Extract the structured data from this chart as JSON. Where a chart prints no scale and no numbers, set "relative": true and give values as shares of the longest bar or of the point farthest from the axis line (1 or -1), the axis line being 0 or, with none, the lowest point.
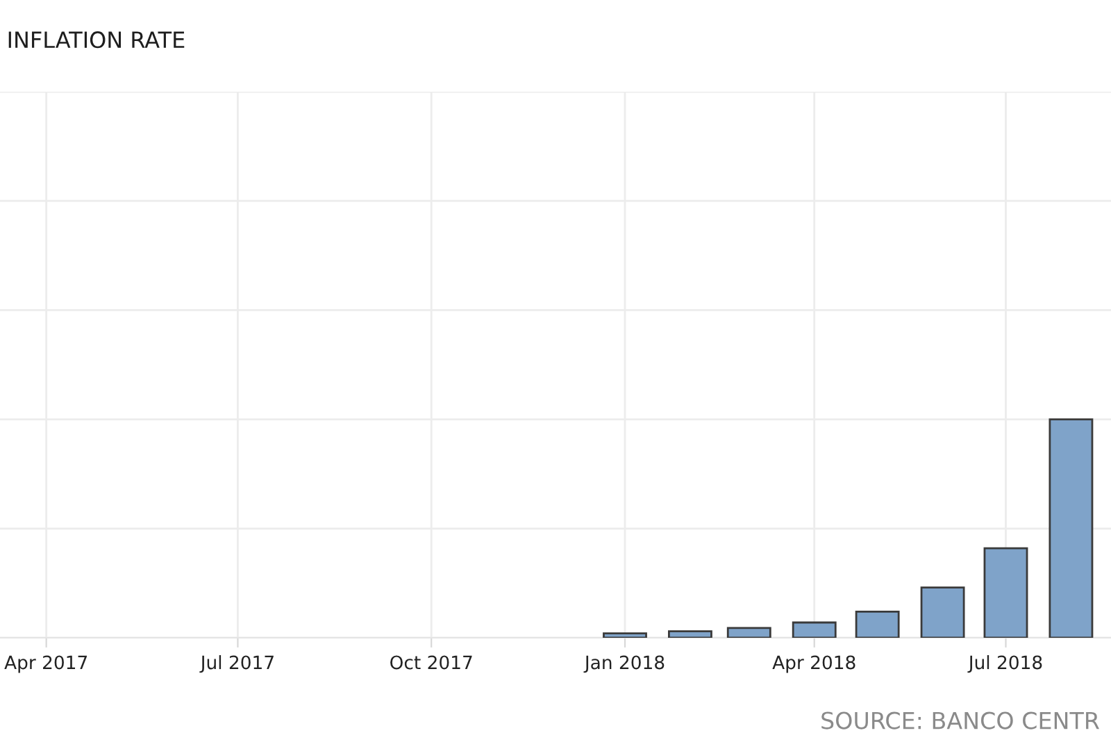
{
  "chart_data": {
    "type": "bar",
    "title": "INFLATION RATE",
    "x": [
      "2018-01",
      "2018-02",
      "2018-03",
      "2018-04",
      "2018-05",
      "2018-06",
      "2018-07",
      "2018-08"
    ],
    "values": [
      0.02,
      0.03,
      0.045,
      0.07,
      0.12,
      0.23,
      0.41,
      1
    ],
    "color": "#7fa3c9",
    "relative": true,
    "xlim": [
      "2017-03-10",
      "2018-08-20"
    ],
    "xticks": [
      {
        "value": "2017-04",
        "label": "Apr 2017"
      },
      {
        "value": "2017-07",
        "label": "Jul 2017"
      },
      {
        "value": "2017-10",
        "label": "Oct 2017"
      },
      {
        "value": "2018-01",
        "label": "Jan 2018"
      },
      {
        "value": "2018-04",
        "label": "Apr 2018"
      },
      {
        "value": "2018-07",
        "label": "Jul 2018"
      }
    ],
    "grid": true,
    "annotations": [
      "SOURCE: BANCO CENTR"
    ]
  }
}
